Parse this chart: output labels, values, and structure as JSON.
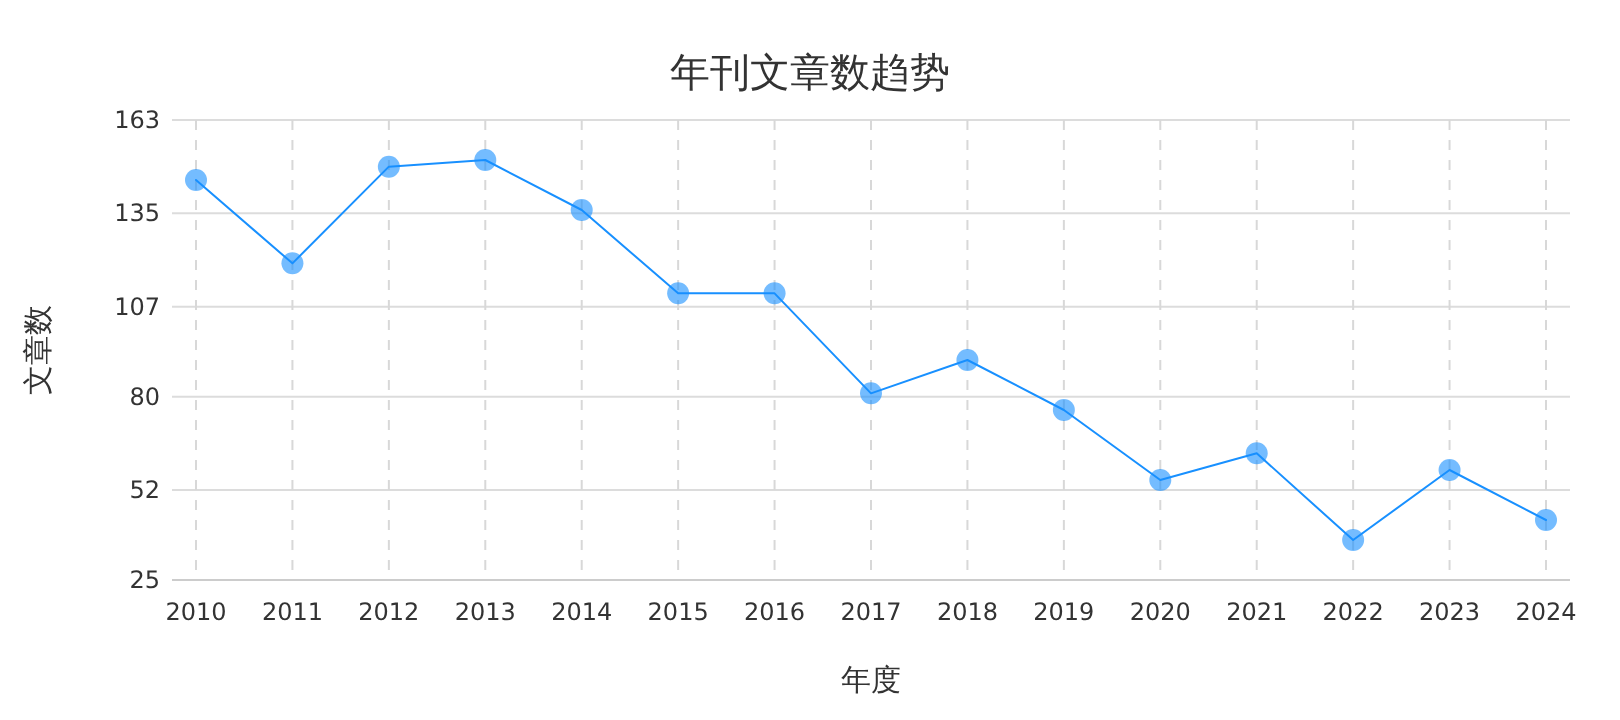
{
  "chart_data": {
    "type": "line",
    "title": "年刊文章数趋势",
    "xlabel": "年度",
    "ylabel": "文章数",
    "categories": [
      "2010",
      "2011",
      "2012",
      "2013",
      "2014",
      "2015",
      "2016",
      "2017",
      "2018",
      "2019",
      "2020",
      "2021",
      "2022",
      "2023",
      "2024"
    ],
    "series": [
      {
        "color": "#1890ff",
        "values": [
          145,
          120,
          149,
          151,
          136,
          111,
          111,
          81,
          91,
          76,
          55,
          63,
          37,
          58,
          43
        ]
      }
    ],
    "ylim": [
      25,
      163
    ],
    "yticks": [
      25,
      52,
      80,
      107,
      135,
      163
    ],
    "grid": true,
    "marker": "circle",
    "line_style": "solid"
  }
}
